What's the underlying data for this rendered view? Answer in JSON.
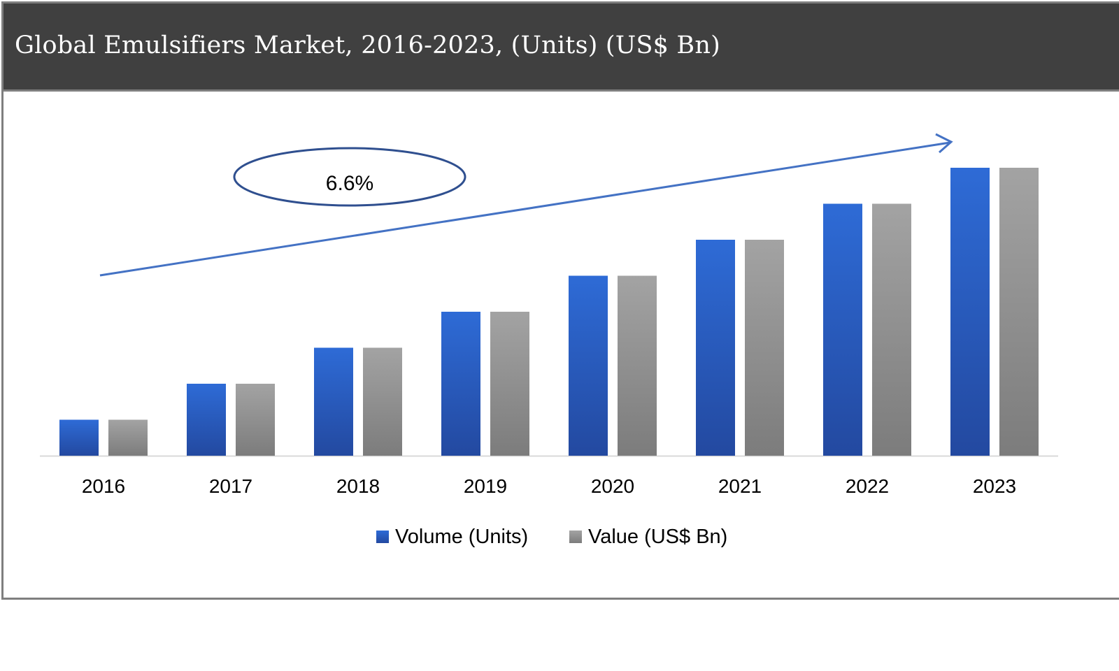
{
  "chart_data": {
    "type": "bar",
    "title": "Global Emulsifiers Market, 2016-2023, (Units) (US$ Bn)",
    "categories": [
      "2016",
      "2017",
      "2018",
      "2019",
      "2020",
      "2021",
      "2022",
      "2023"
    ],
    "series": [
      {
        "name": "Volume (Units)",
        "color": "#2e6bd6",
        "values": [
          1,
          2,
          3,
          4,
          5,
          6,
          7,
          8
        ]
      },
      {
        "name": "Value (US$ Bn)",
        "color": "#a0a0a0",
        "values": [
          1,
          2,
          3,
          4,
          5,
          6,
          7,
          8
        ]
      }
    ],
    "value_note_relative": true,
    "ylim": [
      0,
      8
    ],
    "grid": false,
    "legend": "bottom",
    "annotation": {
      "text": "6.6%",
      "arrow_color": "#4472c4",
      "ellipse_color": "#2f4f8f"
    }
  }
}
